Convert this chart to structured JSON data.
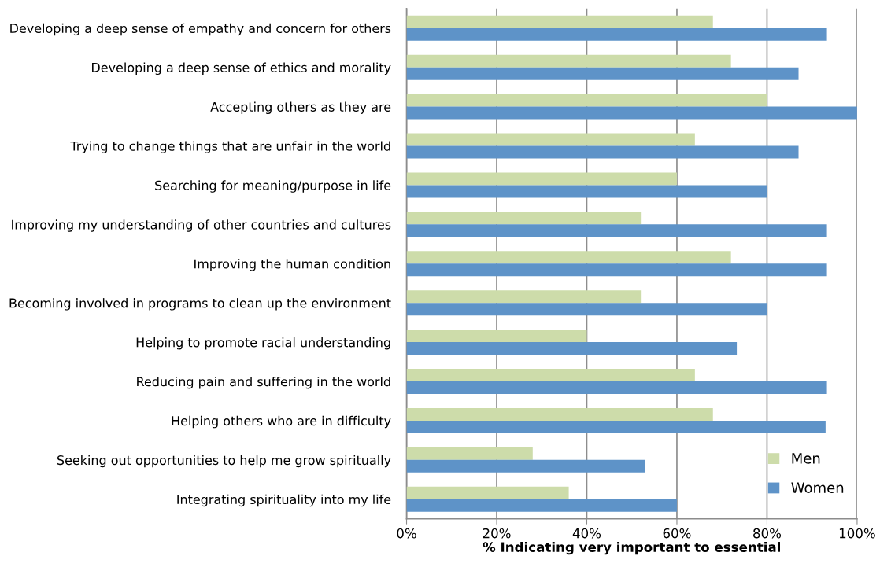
{
  "chart_data": {
    "type": "bar",
    "orientation": "horizontal",
    "xlabel": "% Indicating very important to essential",
    "categories": [
      "Developing a deep sense of empathy and concern for others",
      "Developing a deep sense of ethics and morality",
      "Accepting others as they are",
      "Trying to change things that are unfair in the world",
      "Searching for meaning/purpose in life",
      "Improving my understanding of other countries and cultures",
      "Improving the human condition",
      "Becoming involved in programs to clean up the environment",
      "Helping to promote racial understanding",
      "Reducing pain and suffering in the world",
      "Helping others who are in difficulty",
      "Seeking out opportunities to help me grow spiritually",
      "Integrating spirituality into my life"
    ],
    "series": [
      {
        "name": "Men",
        "color": "#cddcaa",
        "values": [
          68,
          72,
          80,
          64,
          60,
          52,
          72,
          52,
          40,
          64,
          68,
          28,
          36
        ]
      },
      {
        "name": "Women",
        "color": "#5e93c8",
        "values": [
          93.3,
          87,
          100,
          87,
          80,
          93.3,
          93.3,
          80,
          73.3,
          93.3,
          93,
          53,
          60
        ]
      }
    ],
    "xlim": [
      0,
      100
    ],
    "xticks": [
      {
        "value": 0,
        "label": "0%"
      },
      {
        "value": 20,
        "label": "20%"
      },
      {
        "value": 40,
        "label": "40%"
      },
      {
        "value": 60,
        "label": "60%"
      },
      {
        "value": 80,
        "label": "80%"
      },
      {
        "value": 100,
        "label": "100%"
      }
    ],
    "grid": "x",
    "legend": "bottom right"
  }
}
